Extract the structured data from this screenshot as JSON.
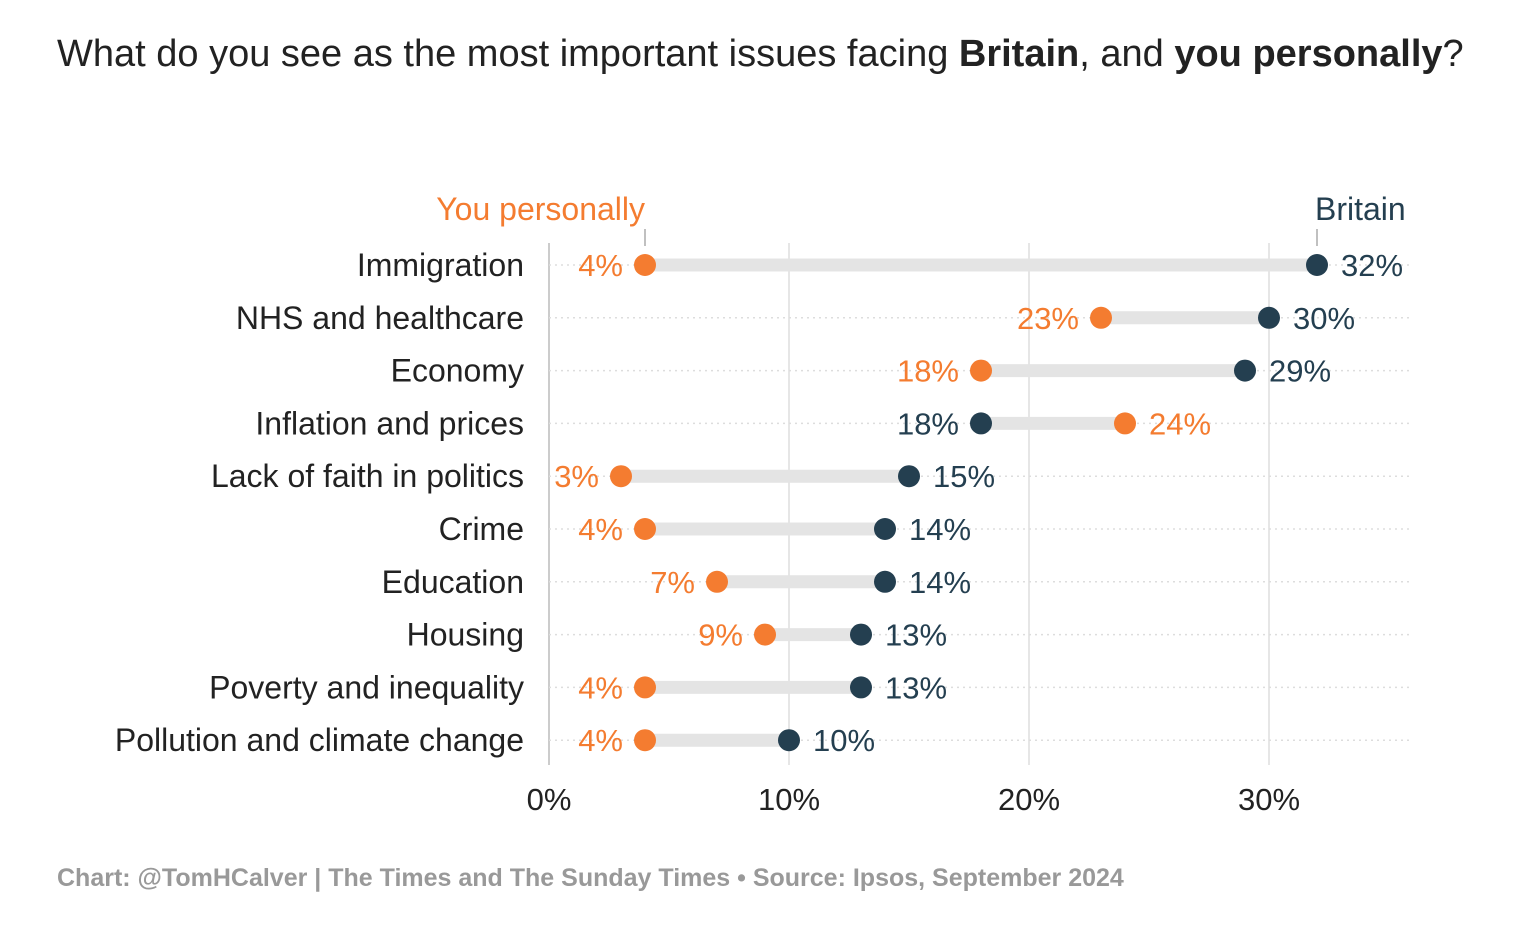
{
  "title": {
    "part1": "What do you see as the most important issues facing ",
    "bold1": "Britain",
    "part2": ", and ",
    "bold2": "you personally",
    "part3": "?"
  },
  "footer": "Chart: @TomHCalver | The Times and The Sunday Times • Source: Ipsos, September 2024",
  "colors": {
    "personal": "#f47c30",
    "britain": "#243f50",
    "bar": "#e4e4e4",
    "grid": "#e6e6e6"
  },
  "chart_data": {
    "type": "dot-range",
    "title": "What do you see as the most important issues facing Britain, and you personally?",
    "categories": [
      "Immigration",
      "NHS and healthcare",
      "Economy",
      "Inflation and prices",
      "Lack of faith in politics",
      "Crime",
      "Education",
      "Housing",
      "Poverty and inequality",
      "Pollution and climate change"
    ],
    "series": [
      {
        "name": "You personally",
        "values": [
          4,
          23,
          18,
          24,
          3,
          4,
          7,
          9,
          4,
          4
        ]
      },
      {
        "name": "Britain",
        "values": [
          32,
          30,
          29,
          18,
          15,
          14,
          14,
          13,
          13,
          10
        ]
      }
    ],
    "xlim": [
      0,
      36
    ],
    "xticks": [
      0,
      10,
      20,
      30
    ],
    "xtick_labels": [
      "0%",
      "10%",
      "20%",
      "30%"
    ],
    "value_suffix": "%",
    "legend_placement": "top, labelling first row"
  }
}
